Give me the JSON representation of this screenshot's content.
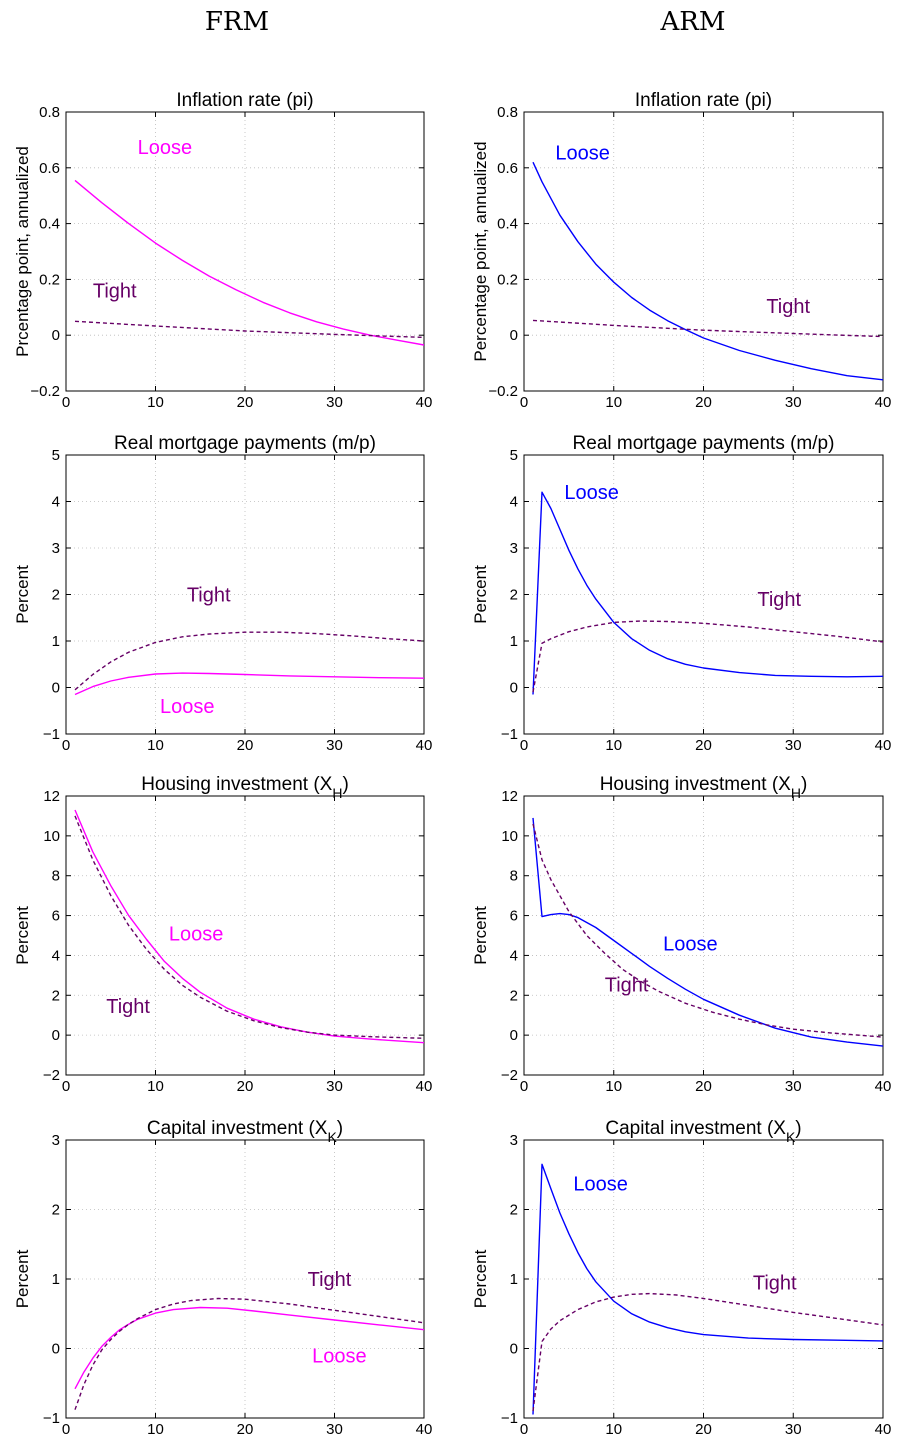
{
  "column_titles": [
    "FRM",
    "ARM"
  ],
  "colors": {
    "loose_frm": "#ff00ff",
    "loose_arm": "#0000ff",
    "tight": "#660066"
  },
  "chart_data": [
    {
      "type": "line",
      "column": "FRM",
      "row": 0,
      "title": "Inflation rate (pi)",
      "title_sub": "",
      "ylabel": "Prcentage point, annualized",
      "xlim": [
        0,
        40
      ],
      "ylim": [
        -0.2,
        0.8
      ],
      "xticks": [
        0,
        10,
        20,
        30,
        40
      ],
      "yticks": [
        -0.2,
        0,
        0.2,
        0.4,
        0.6,
        0.8
      ],
      "ytick_labels": [
        "−0.2",
        "0",
        "0.2",
        "0.4",
        "0.6",
        "0.8"
      ],
      "grid": true,
      "series": [
        {
          "name": "Loose",
          "style": "solid",
          "color": "#ff00ff",
          "x": [
            1,
            4,
            7,
            10,
            13,
            16,
            19,
            22,
            25,
            28,
            31,
            34,
            37,
            40
          ],
          "y": [
            0.555,
            0.475,
            0.4,
            0.33,
            0.268,
            0.212,
            0.163,
            0.118,
            0.08,
            0.048,
            0.022,
            0.0,
            -0.018,
            -0.035
          ]
        },
        {
          "name": "Tight",
          "style": "dashed",
          "color": "#660066",
          "x": [
            1,
            10,
            20,
            30,
            40
          ],
          "y": [
            0.05,
            0.033,
            0.015,
            0.003,
            -0.008
          ]
        }
      ],
      "annotations": [
        {
          "text": "Loose",
          "x": 8,
          "y": 0.65,
          "color": "#ff00ff"
        },
        {
          "text": "Tight",
          "x": 3,
          "y": 0.135,
          "color": "#660066"
        }
      ]
    },
    {
      "type": "line",
      "column": "ARM",
      "row": 0,
      "title": "Inflation rate (pi)",
      "title_sub": "",
      "ylabel": "Percentage point, annualized",
      "xlim": [
        0,
        40
      ],
      "ylim": [
        -0.2,
        0.8
      ],
      "xticks": [
        0,
        10,
        20,
        30,
        40
      ],
      "yticks": [
        -0.2,
        0,
        0.2,
        0.4,
        0.6,
        0.8
      ],
      "ytick_labels": [
        "−0.2",
        "0",
        "0.2",
        "0.4",
        "0.6",
        "0.8"
      ],
      "grid": true,
      "series": [
        {
          "name": "Loose",
          "style": "solid",
          "color": "#0000ff",
          "x": [
            1,
            2,
            4,
            6,
            8,
            10,
            12,
            14,
            16,
            18,
            20,
            24,
            28,
            32,
            36,
            40
          ],
          "y": [
            0.62,
            0.55,
            0.43,
            0.335,
            0.255,
            0.19,
            0.135,
            0.09,
            0.052,
            0.02,
            -0.01,
            -0.055,
            -0.09,
            -0.12,
            -0.145,
            -0.16
          ]
        },
        {
          "name": "Tight",
          "style": "dashed",
          "color": "#660066",
          "x": [
            1,
            10,
            20,
            30,
            40
          ],
          "y": [
            0.053,
            0.035,
            0.018,
            0.006,
            -0.005
          ]
        }
      ],
      "annotations": [
        {
          "text": "Loose",
          "x": 3.5,
          "y": 0.63,
          "color": "#0000ff"
        },
        {
          "text": "Tight",
          "x": 27,
          "y": 0.08,
          "color": "#660066"
        }
      ]
    },
    {
      "type": "line",
      "column": "FRM",
      "row": 1,
      "title": "Real mortgage payments (m/p)",
      "title_sub": "",
      "ylabel": "Percent",
      "xlim": [
        0,
        40
      ],
      "ylim": [
        -1,
        5
      ],
      "xticks": [
        0,
        10,
        20,
        30,
        40
      ],
      "yticks": [
        -1,
        0,
        1,
        2,
        3,
        4,
        5
      ],
      "ytick_labels": [
        "−1",
        "0",
        "1",
        "2",
        "3",
        "4",
        "5"
      ],
      "grid": true,
      "series": [
        {
          "name": "Loose",
          "style": "solid",
          "color": "#ff00ff",
          "x": [
            1,
            3,
            5,
            7,
            10,
            13,
            16,
            20,
            25,
            30,
            35,
            40
          ],
          "y": [
            -0.15,
            0.02,
            0.14,
            0.22,
            0.29,
            0.31,
            0.3,
            0.28,
            0.25,
            0.23,
            0.21,
            0.2
          ]
        },
        {
          "name": "Tight",
          "style": "dashed",
          "color": "#660066",
          "x": [
            1,
            3,
            5,
            7,
            10,
            13,
            16,
            20,
            24,
            28,
            32,
            36,
            40
          ],
          "y": [
            -0.05,
            0.28,
            0.55,
            0.76,
            0.97,
            1.09,
            1.15,
            1.19,
            1.19,
            1.16,
            1.11,
            1.05,
            1.0
          ]
        }
      ],
      "annotations": [
        {
          "text": "Tight",
          "x": 13.5,
          "y": 1.85,
          "color": "#660066"
        },
        {
          "text": "Loose",
          "x": 10.5,
          "y": -0.55,
          "color": "#ff00ff"
        }
      ]
    },
    {
      "type": "line",
      "column": "ARM",
      "row": 1,
      "title": "Real mortgage payments (m/p)",
      "title_sub": "",
      "ylabel": "Percent",
      "xlim": [
        0,
        40
      ],
      "ylim": [
        -1,
        5
      ],
      "xticks": [
        0,
        10,
        20,
        30,
        40
      ],
      "yticks": [
        -1,
        0,
        1,
        2,
        3,
        4,
        5
      ],
      "ytick_labels": [
        "−1",
        "0",
        "1",
        "2",
        "3",
        "4",
        "5"
      ],
      "grid": true,
      "series": [
        {
          "name": "Loose",
          "style": "solid",
          "color": "#0000ff",
          "x": [
            1,
            2,
            3,
            4,
            5,
            6,
            7,
            8,
            10,
            12,
            14,
            16,
            18,
            20,
            24,
            28,
            32,
            36,
            40
          ],
          "y": [
            -0.15,
            4.2,
            3.85,
            3.4,
            2.95,
            2.55,
            2.2,
            1.9,
            1.4,
            1.05,
            0.8,
            0.62,
            0.5,
            0.42,
            0.32,
            0.26,
            0.24,
            0.23,
            0.24
          ]
        },
        {
          "name": "Tight",
          "style": "dashed",
          "color": "#660066",
          "x": [
            1,
            2,
            3,
            5,
            7,
            10,
            13,
            16,
            20,
            25,
            30,
            35,
            40
          ],
          "y": [
            -0.1,
            0.95,
            1.05,
            1.2,
            1.3,
            1.4,
            1.43,
            1.42,
            1.38,
            1.3,
            1.2,
            1.1,
            0.98
          ]
        }
      ],
      "annotations": [
        {
          "text": "Loose",
          "x": 4.5,
          "y": 4.05,
          "color": "#0000ff"
        },
        {
          "text": "Tight",
          "x": 26,
          "y": 1.75,
          "color": "#660066"
        }
      ]
    },
    {
      "type": "line",
      "column": "FRM",
      "row": 2,
      "title": "Housing investment (X",
      "title_sub": "H",
      "ylabel": "Percent",
      "xlim": [
        0,
        40
      ],
      "ylim": [
        -2,
        12
      ],
      "xticks": [
        0,
        10,
        20,
        30,
        40
      ],
      "yticks": [
        -2,
        0,
        2,
        4,
        6,
        8,
        10,
        12
      ],
      "ytick_labels": [
        "−2",
        "0",
        "2",
        "4",
        "6",
        "8",
        "10",
        "12"
      ],
      "grid": true,
      "series": [
        {
          "name": "Loose",
          "style": "solid",
          "color": "#ff00ff",
          "x": [
            1,
            3,
            5,
            7,
            9,
            11,
            13,
            15,
            18,
            21,
            24,
            27,
            30,
            34,
            40
          ],
          "y": [
            11.3,
            9.2,
            7.5,
            6.0,
            4.8,
            3.7,
            2.85,
            2.15,
            1.35,
            0.8,
            0.42,
            0.15,
            -0.05,
            -0.2,
            -0.38
          ]
        },
        {
          "name": "Tight",
          "style": "dashed",
          "color": "#660066",
          "x": [
            1,
            3,
            5,
            7,
            9,
            11,
            13,
            15,
            18,
            21,
            24,
            27,
            30,
            34,
            40
          ],
          "y": [
            11.0,
            8.8,
            7.0,
            5.5,
            4.3,
            3.3,
            2.5,
            1.9,
            1.2,
            0.72,
            0.38,
            0.15,
            0.0,
            -0.08,
            -0.16
          ]
        }
      ],
      "annotations": [
        {
          "text": "Loose",
          "x": 11.5,
          "y": 4.75,
          "color": "#ff00ff"
        },
        {
          "text": "Tight",
          "x": 4.5,
          "y": 1.1,
          "color": "#660066"
        }
      ]
    },
    {
      "type": "line",
      "column": "ARM",
      "row": 2,
      "title": "Housing investment (X",
      "title_sub": "H",
      "ylabel": "Percent",
      "xlim": [
        0,
        40
      ],
      "ylim": [
        -2,
        12
      ],
      "xticks": [
        0,
        10,
        20,
        30,
        40
      ],
      "yticks": [
        -2,
        0,
        2,
        4,
        6,
        8,
        10,
        12
      ],
      "ytick_labels": [
        "−2",
        "0",
        "2",
        "4",
        "6",
        "8",
        "10",
        "12"
      ],
      "grid": true,
      "series": [
        {
          "name": "Loose",
          "style": "solid",
          "color": "#0000ff",
          "x": [
            1,
            2,
            3,
            4,
            5,
            6,
            8,
            10,
            12,
            14,
            16,
            18,
            20,
            24,
            28,
            32,
            36,
            40
          ],
          "y": [
            10.9,
            5.95,
            6.05,
            6.1,
            6.05,
            5.9,
            5.4,
            4.75,
            4.1,
            3.45,
            2.85,
            2.3,
            1.8,
            1.0,
            0.35,
            -0.1,
            -0.35,
            -0.55
          ]
        },
        {
          "name": "Tight",
          "style": "dashed",
          "color": "#660066",
          "x": [
            1,
            2,
            3,
            5,
            7,
            9,
            11,
            13,
            15,
            18,
            21,
            24,
            27,
            30,
            34,
            40
          ],
          "y": [
            10.6,
            8.8,
            7.8,
            6.2,
            5.0,
            4.1,
            3.3,
            2.7,
            2.2,
            1.6,
            1.15,
            0.8,
            0.52,
            0.3,
            0.12,
            -0.1
          ]
        }
      ],
      "annotations": [
        {
          "text": "Loose",
          "x": 15.5,
          "y": 4.25,
          "color": "#0000ff"
        },
        {
          "text": "Tight",
          "x": 9,
          "y": 2.2,
          "color": "#660066"
        }
      ]
    },
    {
      "type": "line",
      "column": "FRM",
      "row": 3,
      "title": "Capital investment (X",
      "title_sub": "K",
      "ylabel": "Percent",
      "xlim": [
        0,
        40
      ],
      "ylim": [
        -1,
        3
      ],
      "xticks": [
        0,
        10,
        20,
        30,
        40
      ],
      "yticks": [
        -1,
        0,
        1,
        2,
        3
      ],
      "ytick_labels": [
        "−1",
        "0",
        "1",
        "2",
        "3"
      ],
      "grid": true,
      "series": [
        {
          "name": "Loose",
          "style": "solid",
          "color": "#ff00ff",
          "x": [
            1,
            2,
            3,
            4,
            5,
            6,
            7,
            8,
            10,
            12,
            15,
            18,
            21,
            25,
            30,
            35,
            40
          ],
          "y": [
            -0.58,
            -0.34,
            -0.14,
            0.03,
            0.16,
            0.27,
            0.35,
            0.42,
            0.51,
            0.56,
            0.59,
            0.58,
            0.54,
            0.48,
            0.41,
            0.34,
            0.27
          ]
        },
        {
          "name": "Tight",
          "style": "dashed",
          "color": "#660066",
          "x": [
            1,
            2,
            3,
            4,
            5,
            6,
            7,
            8,
            10,
            12,
            14,
            17,
            20,
            25,
            30,
            35,
            40
          ],
          "y": [
            -0.88,
            -0.52,
            -0.24,
            -0.02,
            0.13,
            0.25,
            0.35,
            0.43,
            0.56,
            0.64,
            0.69,
            0.72,
            0.71,
            0.64,
            0.55,
            0.46,
            0.37
          ]
        }
      ],
      "annotations": [
        {
          "text": "Tight",
          "x": 27,
          "y": 0.9,
          "color": "#660066"
        },
        {
          "text": "Loose",
          "x": 27.5,
          "y": -0.2,
          "color": "#ff00ff"
        }
      ]
    },
    {
      "type": "line",
      "column": "ARM",
      "row": 3,
      "title": "Capital investment (X",
      "title_sub": "K",
      "ylabel": "Percent",
      "xlim": [
        0,
        40
      ],
      "ylim": [
        -1,
        3
      ],
      "xticks": [
        0,
        10,
        20,
        30,
        40
      ],
      "yticks": [
        -1,
        0,
        1,
        2,
        3
      ],
      "ytick_labels": [
        "−1",
        "0",
        "1",
        "2",
        "3"
      ],
      "grid": true,
      "series": [
        {
          "name": "Loose",
          "style": "solid",
          "color": "#0000ff",
          "x": [
            1,
            2,
            3,
            4,
            5,
            6,
            7,
            8,
            10,
            12,
            14,
            16,
            18,
            20,
            25,
            30,
            35,
            40
          ],
          "y": [
            -0.95,
            2.65,
            2.3,
            1.95,
            1.65,
            1.38,
            1.15,
            0.96,
            0.68,
            0.5,
            0.38,
            0.3,
            0.24,
            0.2,
            0.15,
            0.13,
            0.12,
            0.11
          ]
        },
        {
          "name": "Tight",
          "style": "dashed",
          "color": "#660066",
          "x": [
            1,
            2,
            3,
            4,
            6,
            8,
            10,
            12,
            14,
            17,
            20,
            25,
            30,
            35,
            40
          ],
          "y": [
            -0.9,
            0.1,
            0.28,
            0.4,
            0.56,
            0.67,
            0.74,
            0.78,
            0.79,
            0.77,
            0.72,
            0.62,
            0.52,
            0.43,
            0.34
          ]
        }
      ],
      "annotations": [
        {
          "text": "Loose",
          "x": 5.5,
          "y": 2.27,
          "color": "#0000ff"
        },
        {
          "text": "Tight",
          "x": 25.5,
          "y": 0.85,
          "color": "#660066"
        }
      ]
    }
  ]
}
